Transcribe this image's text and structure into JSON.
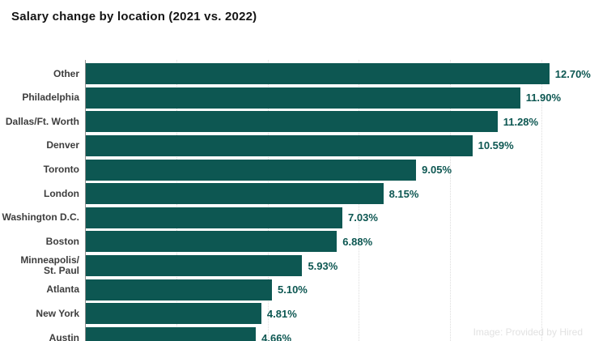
{
  "title": "Salary change by location (2021 vs. 2022)",
  "watermark": "Image: Provided by Hired",
  "colors": {
    "bar": "#0d5752",
    "value_label": "#0d5752",
    "category_label": "#3d3d3d",
    "title": "#141414",
    "axis": "#8f8f8f",
    "gridline": "#dcdcdc",
    "watermark": "#e2e2e2",
    "background": "#ffffff"
  },
  "chart_data": {
    "type": "bar",
    "orientation": "horizontal",
    "title": "Salary change by location (2021 vs. 2022)",
    "categories": [
      "Other",
      "Philadelphia",
      "Dallas/Ft. Worth",
      "Denver",
      "Toronto",
      "London",
      "Washington D.C.",
      "Boston",
      "Minneapolis/St. Paul",
      "Atlanta",
      "New York",
      "Austin"
    ],
    "category_labels": [
      "Other",
      "Philadelphia",
      "Dallas/Ft. Worth",
      "Denver",
      "Toronto",
      "London",
      "Washington D.C.",
      "Boston",
      "Minneapolis/\nSt. Paul",
      "Atlanta",
      "New York",
      "Austin"
    ],
    "values": [
      12.7,
      11.9,
      11.28,
      10.59,
      9.05,
      8.15,
      7.03,
      6.88,
      5.93,
      5.1,
      4.81,
      4.66
    ],
    "value_labels": [
      "12.70%",
      "11.90%",
      "11.28%",
      "10.59%",
      "9.05%",
      "8.15%",
      "7.03%",
      "6.88%",
      "5.93%",
      "5.10%",
      "4.81%",
      "4.66%"
    ],
    "xlabel": "",
    "ylabel": "",
    "xlim": [
      0,
      14.3
    ],
    "unit": "%",
    "grid": {
      "style": "dotted-vertical",
      "positions_pct": [
        2.5,
        5,
        7.5,
        10,
        12.5
      ]
    },
    "legend": "none",
    "bars_sorted": "descending"
  }
}
